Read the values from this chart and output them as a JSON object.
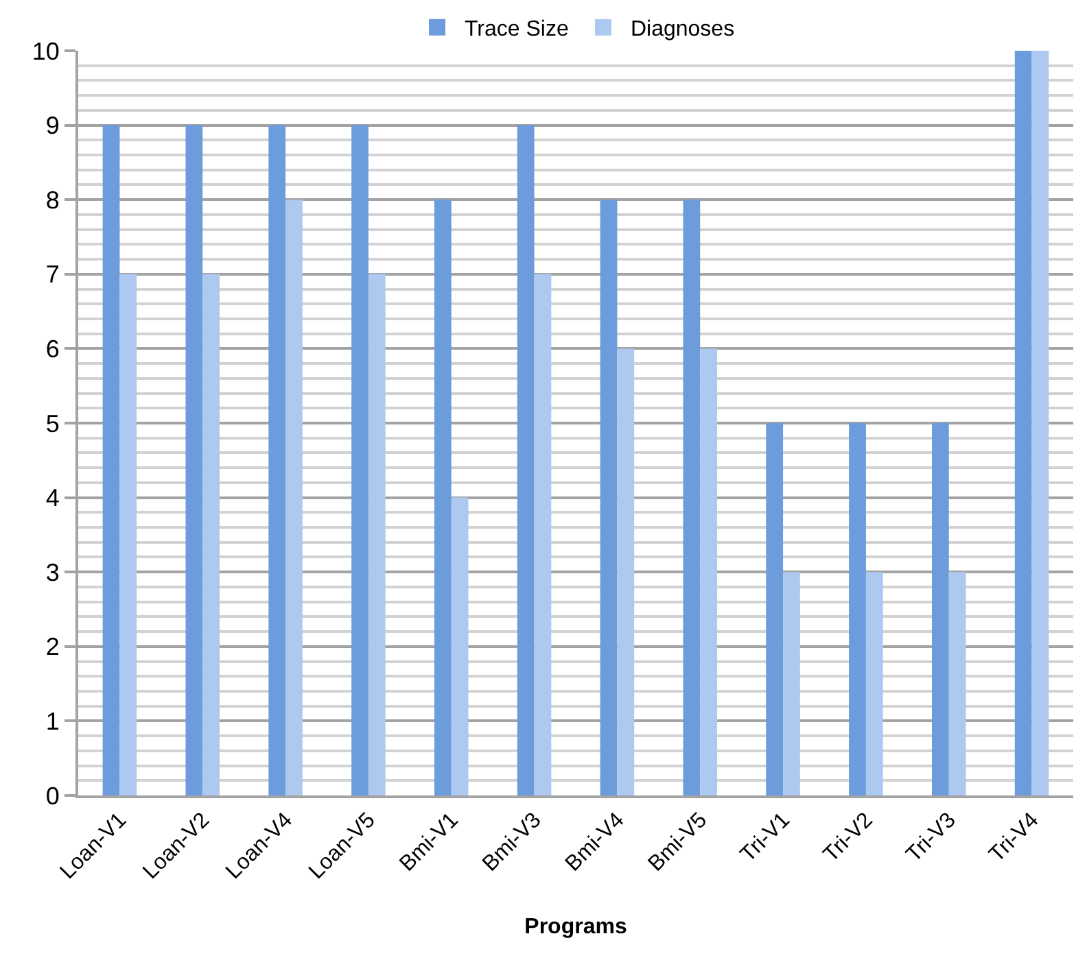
{
  "chart_data": {
    "type": "bar",
    "xlabel": "Programs",
    "categories": [
      "Loan-V1",
      "Loan-V2",
      "Loan-V4",
      "Loan-V5",
      "Bmi-V1",
      "Bmi-V3",
      "Bmi-V4",
      "Bmi-V5",
      "Tri-V1",
      "Tri-V2",
      "Tri-V3",
      "Tri-V4"
    ],
    "series": [
      {
        "name": "Trace Size",
        "color": "#6c9cdb",
        "values": [
          9,
          9,
          9,
          9,
          8,
          9,
          8,
          8,
          5,
          5,
          5,
          10
        ]
      },
      {
        "name": "Diagnoses",
        "color": "#adc9f0",
        "values": [
          7,
          7,
          8,
          7,
          4,
          7,
          6,
          6,
          3,
          3,
          3,
          10
        ]
      }
    ],
    "ylim": [
      0,
      10
    ],
    "yticks": [
      0,
      {
        "value": 0.2,
        "label": null
      },
      {
        "value": 0.4,
        "label": null
      },
      {
        "value": 0.6,
        "label": null
      },
      {
        "value": 0.8,
        "label": null
      },
      1,
      {
        "value": 1.2,
        "label": null
      },
      {
        "value": 1.4,
        "label": null
      },
      {
        "value": 1.6,
        "label": null
      },
      {
        "value": 1.8,
        "label": null
      },
      2,
      {
        "value": 2.2,
        "label": null
      },
      {
        "value": 2.4,
        "label": null
      },
      {
        "value": 2.6,
        "label": null
      },
      {
        "value": 2.8,
        "label": null
      },
      3,
      {
        "value": 3.2,
        "label": null
      },
      {
        "value": 3.4,
        "label": null
      },
      {
        "value": 3.6,
        "label": null
      },
      {
        "value": 3.8,
        "label": null
      },
      4,
      {
        "value": 4.2,
        "label": null
      },
      {
        "value": 4.4,
        "label": null
      },
      {
        "value": 4.6,
        "label": null
      },
      {
        "value": 4.8,
        "label": null
      },
      5,
      {
        "value": 5.2,
        "label": null
      },
      {
        "value": 5.4,
        "label": null
      },
      {
        "value": 5.6,
        "label": null
      },
      {
        "value": 5.8,
        "label": null
      },
      6,
      {
        "value": 6.2,
        "label": null
      },
      {
        "value": 6.4,
        "label": null
      },
      {
        "value": 6.6,
        "label": null
      },
      {
        "value": 6.8,
        "label": null
      },
      7,
      {
        "value": 7.2,
        "label": null
      },
      {
        "value": 7.4,
        "label": null
      },
      {
        "value": 7.6,
        "label": null
      },
      {
        "value": 7.8,
        "label": null
      },
      8,
      {
        "value": 8.2,
        "label": null
      },
      {
        "value": 8.4,
        "label": null
      },
      {
        "value": 8.6,
        "label": null
      },
      {
        "value": 8.8,
        "label": null
      },
      9,
      {
        "value": 9.2,
        "label": null
      },
      {
        "value": 9.4,
        "label": null
      },
      {
        "value": 9.6,
        "label": null
      },
      {
        "value": 9.8,
        "label": null
      },
      10
    ],
    "grid": "y",
    "legend": "top"
  }
}
